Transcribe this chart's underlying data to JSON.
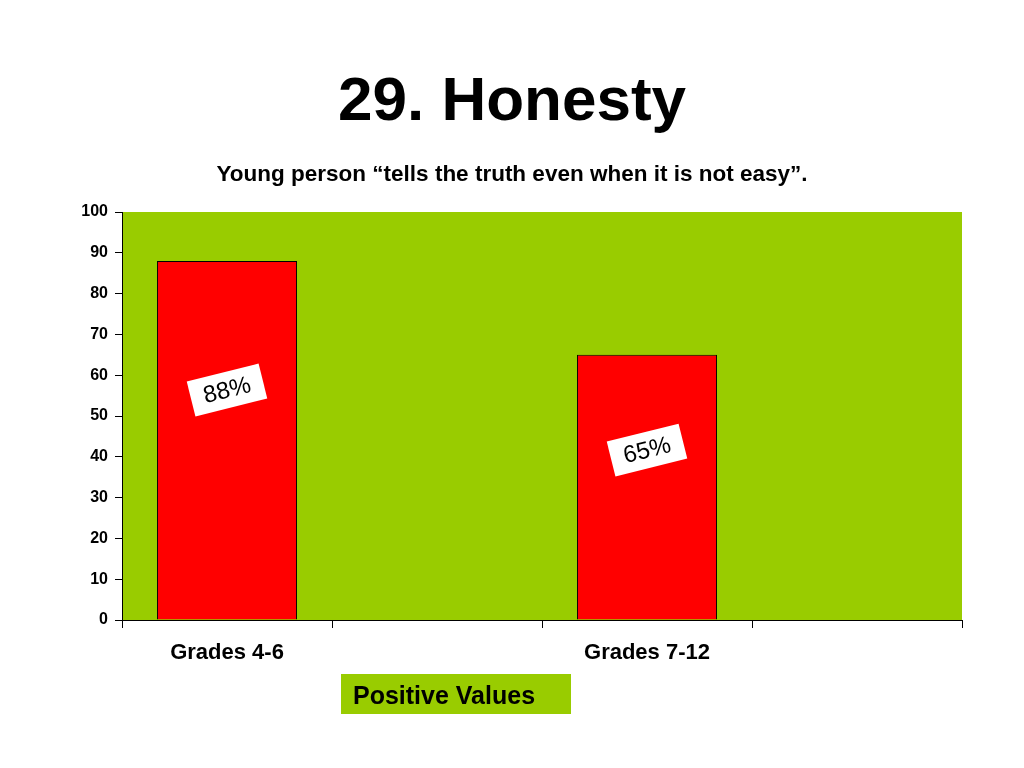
{
  "chart_data": {
    "type": "bar",
    "title": "29. Honesty",
    "subtitle": "Young person “tells the truth even when it is not easy”.",
    "categories": [
      "Grades 4-6",
      null,
      "Grades 7-12",
      null
    ],
    "values": [
      88,
      null,
      65,
      null
    ],
    "color": "#ff0000",
    "value_labels": [
      "88%",
      null,
      "65%",
      null
    ],
    "ylim": [
      0,
      100
    ],
    "yticks": [
      0,
      10,
      20,
      30,
      40,
      50,
      60,
      70,
      80,
      90,
      100
    ],
    "annotations": [
      "Positive Values"
    ]
  }
}
